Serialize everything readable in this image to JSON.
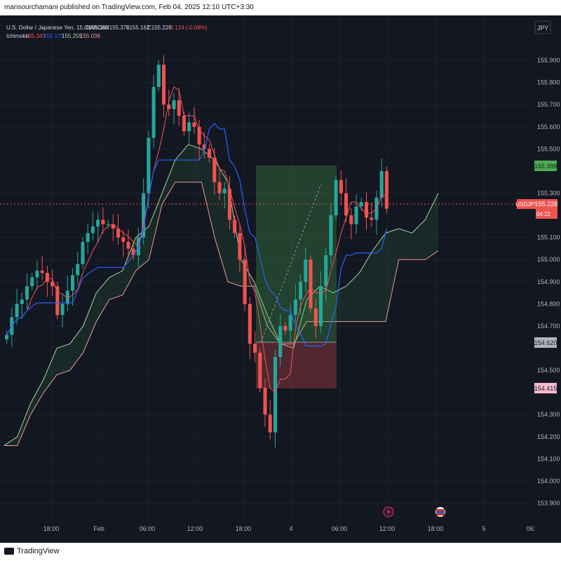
{
  "publisher_line": "mansourchamani published on TradingView.com, Feb 04, 2025 12:10 UTC+3:30",
  "legend": {
    "symbol_line": "U.S. Dollar / Japanese Yen, 15, OANDA",
    "ohlc": {
      "o": "O155.351",
      "h": "H155.378",
      "l": "L155.162",
      "c": "C155.228",
      "chg": "-0.124 (-0.08%)"
    },
    "indicator_name": "Ichimoku",
    "indicator_values": [
      "155.343",
      "155.176",
      "155.259",
      "155.036"
    ],
    "indicator_colors": [
      "#f7525f",
      "#2962ff",
      "#a5d6a7",
      "#ef9a9a"
    ]
  },
  "currency_button": "JPY",
  "footer_logo": "TradingView",
  "price_tags": {
    "current": {
      "label": "USDJPY",
      "price": "155.228",
      "countdown": "04:22"
    },
    "target": "155.399",
    "entry": "154.620",
    "stop": "154.415"
  },
  "colors": {
    "up": "#26a69a",
    "down": "#ef5350",
    "bg": "#131722",
    "tenkan": "#f7525f",
    "kijun": "#2962ff",
    "spanA": "#a5d6a7",
    "spanB": "#ef9a9a",
    "profit": "#4caf50",
    "loss": "#ef5350"
  },
  "chart_data": {
    "type": "candlestick",
    "symbol": "USDJPY",
    "interval": "15",
    "y_axis": {
      "min": 153.87,
      "max": 155.97,
      "ticks": [
        "155.900",
        "155.800",
        "155.700",
        "155.600",
        "155.500",
        "155.300",
        "155.100",
        "155.000",
        "154.900",
        "154.800",
        "154.700",
        "154.500",
        "154.300",
        "154.200",
        "154.100",
        "154.000",
        "153.900"
      ]
    },
    "x_axis": {
      "ticks": [
        "18:00",
        "Feb",
        "06:00",
        "12:00",
        "18:00",
        "4",
        "06:00",
        "12:00",
        "18:00",
        "5",
        "06:"
      ]
    },
    "price_series_close": [
      154.66,
      154.74,
      154.8,
      154.82,
      154.88,
      154.92,
      154.95,
      154.94,
      154.9,
      154.88,
      154.75,
      154.8,
      154.86,
      154.93,
      154.98,
      155.08,
      155.12,
      155.15,
      155.18,
      155.16,
      155.16,
      155.14,
      155.1,
      155.08,
      155.05,
      155.02,
      155.1,
      155.3,
      155.55,
      155.78,
      155.88,
      155.7,
      155.68,
      155.72,
      155.65,
      155.58,
      155.62,
      155.6,
      155.52,
      155.5,
      155.46,
      155.35,
      155.3,
      155.32,
      155.18,
      155.12,
      155.0,
      154.8,
      154.62,
      154.58,
      154.42,
      154.3,
      154.22,
      154.56,
      154.7,
      154.68,
      154.75,
      154.82,
      154.9,
      155.0,
      154.78,
      154.7,
      154.88,
      155.02,
      155.2,
      155.36,
      155.3,
      155.2,
      155.16,
      155.24,
      155.26,
      155.19,
      155.18,
      155.28,
      155.4,
      155.23
    ],
    "ichimoku": {
      "tenkan_last": 155.343,
      "kijun_last": 155.176,
      "span_a_last": 155.259,
      "span_b_last": 155.036,
      "span_a": [
        154.16,
        154.2,
        154.35,
        154.46,
        154.6,
        154.62,
        154.7,
        154.85,
        154.92,
        154.95,
        155.1,
        155.15,
        155.3,
        155.45,
        155.52,
        155.5,
        155.45,
        155.35,
        155.0,
        154.9,
        154.75,
        154.62,
        154.6,
        154.82,
        154.88,
        154.85,
        154.88,
        154.94,
        155.04,
        155.12,
        155.14,
        155.12,
        155.18,
        155.3
      ],
      "span_b": [
        154.16,
        154.16,
        154.3,
        154.4,
        154.48,
        154.5,
        154.58,
        154.72,
        154.82,
        154.84,
        154.95,
        155.0,
        155.25,
        155.35,
        155.35,
        155.35,
        155.1,
        154.9,
        154.88,
        154.88,
        154.7,
        154.62,
        154.62,
        154.72,
        154.72,
        154.72,
        154.72,
        154.72,
        154.72,
        154.72,
        155.0,
        155.0,
        155.0,
        155.04
      ]
    },
    "position": {
      "type": "long",
      "entry": 154.62,
      "target": 155.399,
      "stop": 154.415
    }
  }
}
